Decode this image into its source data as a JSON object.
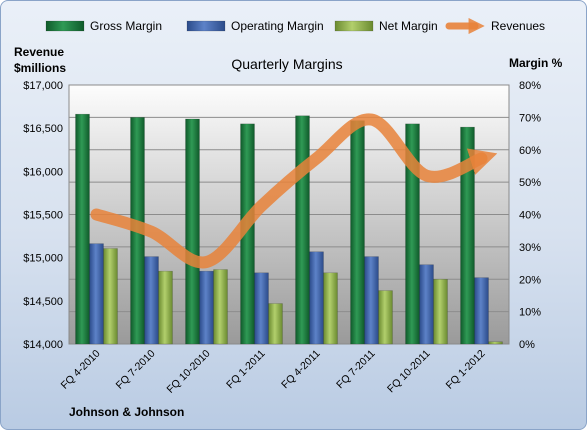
{
  "chart_data": {
    "type": "bar",
    "title": "Quarterly Margins",
    "company": "Johnson & Johnson",
    "left_axis_label": [
      "Revenue",
      "$millions"
    ],
    "right_axis_label": "Margin %",
    "categories": [
      "FQ 4-2010",
      "FQ 7-2010",
      "FQ 10-2010",
      "FQ 1-2011",
      "FQ 4-2011",
      "FQ 7-2011",
      "FQ 10-2011",
      "FQ 1-2012"
    ],
    "left_ticks": [
      "$14,000",
      "$14,500",
      "$15,000",
      "$15,500",
      "$16,000",
      "$16,500",
      "$17,000"
    ],
    "right_ticks": [
      "0%",
      "10%",
      "20%",
      "30%",
      "40%",
      "50%",
      "60%",
      "70%",
      "80%"
    ],
    "ylim_left": [
      14000,
      17000
    ],
    "ylim_right": [
      0,
      80
    ],
    "grid": true,
    "legend_position": "top",
    "series": [
      {
        "name": "Gross Margin",
        "kind": "bar",
        "axis": "right",
        "color": "#1f7a3f",
        "values": [
          71,
          70,
          69.5,
          68,
          70.5,
          69,
          68,
          67
        ]
      },
      {
        "name": "Operating Margin",
        "kind": "bar",
        "axis": "right",
        "color": "#3f62a8",
        "values": [
          31,
          27,
          22.5,
          22,
          28.5,
          27,
          24.5,
          20.5
        ]
      },
      {
        "name": "Net Margin",
        "kind": "bar",
        "axis": "right",
        "color": "#8db04a",
        "values": [
          29.5,
          22.5,
          23,
          12.5,
          22,
          16.5,
          20,
          0.7
        ]
      },
      {
        "name": "Revenues",
        "kind": "line",
        "axis": "left",
        "color": "#e8823a",
        "values": [
          15500,
          15300,
          14950,
          15600,
          16150,
          16600,
          15950,
          16150
        ]
      }
    ]
  }
}
